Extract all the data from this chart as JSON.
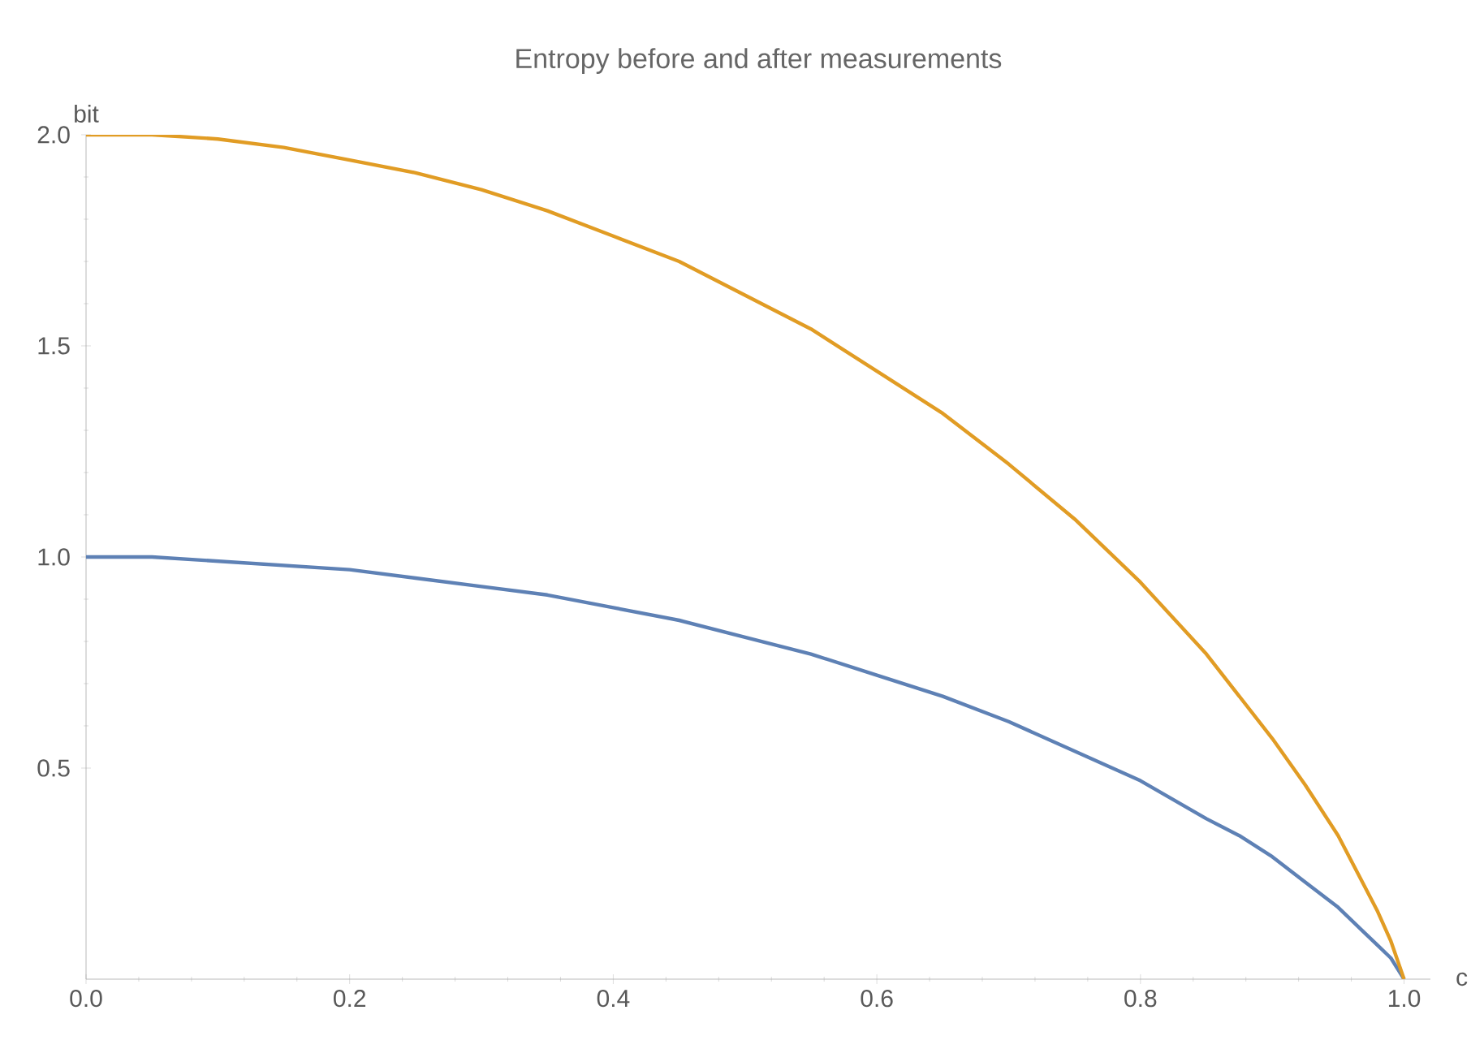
{
  "chart_data": {
    "type": "line",
    "title": "Entropy before and after measurements",
    "xlabel": "c",
    "ylabel": "bit",
    "xlim": [
      0,
      1.02
    ],
    "ylim": [
      0,
      2.0
    ],
    "xticks": [
      {
        "value": 0,
        "label": "0.0"
      },
      0.2,
      0.4,
      0.6,
      0.8,
      {
        "value": 1,
        "label": "1.0"
      }
    ],
    "yticks": [
      0.5,
      {
        "value": 1,
        "label": "1.0"
      },
      1.5,
      {
        "value": 2,
        "label": "2.0"
      }
    ],
    "x": [
      0,
      0.05,
      0.1,
      0.15,
      0.2,
      0.25,
      0.3,
      0.35,
      0.4,
      0.45,
      0.5,
      0.55,
      0.6,
      0.65,
      0.7,
      0.75,
      0.8,
      0.85,
      0.875,
      0.9,
      0.925,
      0.95,
      0.97,
      0.98,
      0.99,
      1
    ],
    "series": [
      {
        "color": "#5e81b5",
        "values": [
          1.0,
          1.0,
          0.99,
          0.98,
          0.97,
          0.95,
          0.93,
          0.91,
          0.88,
          0.85,
          0.81,
          0.77,
          0.72,
          0.67,
          0.61,
          0.54,
          0.47,
          0.38,
          0.34,
          0.29,
          0.23,
          0.17,
          0.11,
          0.08,
          0.05,
          0
        ]
      },
      {
        "color": "#e19c24",
        "values": [
          2.0,
          2.0,
          1.99,
          1.97,
          1.94,
          1.91,
          1.87,
          1.82,
          1.76,
          1.7,
          1.62,
          1.54,
          1.44,
          1.34,
          1.22,
          1.09,
          0.94,
          0.77,
          0.67,
          0.57,
          0.46,
          0.34,
          0.22,
          0.16,
          0.09,
          0
        ]
      }
    ],
    "grid": false,
    "marker": "none",
    "line_style": "solid"
  }
}
